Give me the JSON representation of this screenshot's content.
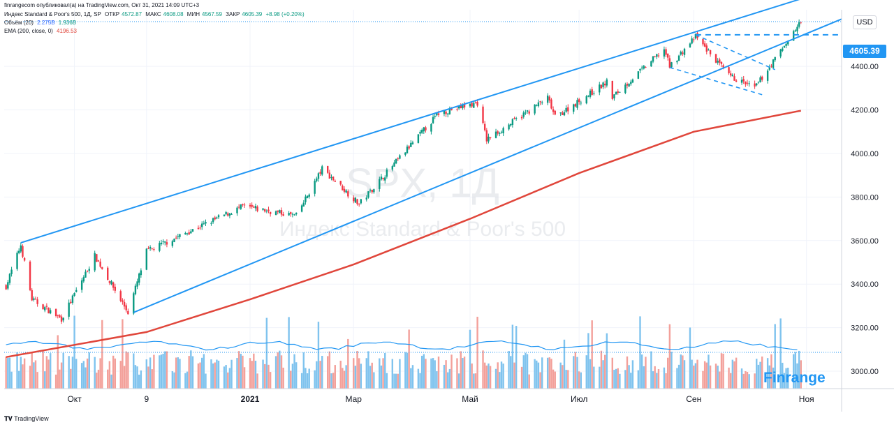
{
  "header": {
    "credit": "finrangecom опубликовал(а) на TradingView.com, Окт 31, 2021 14:09 UTC+3",
    "symbol_line": "Индекс Standard & Poor's 500, 1Д, SP",
    "ohlc": {
      "open_label": "ОТКР",
      "open": "4572.87",
      "high_label": "МАКС",
      "high": "4608.08",
      "low_label": "МИН",
      "low": "4567.59",
      "close_label": "ЗАКР",
      "close": "4605.39",
      "change": "+8.98 (+0.20%)"
    },
    "volume_line": {
      "label": "Объём (20)",
      "v1": "2.275B",
      "v2": "1.936B"
    },
    "ema_line": {
      "label": "EMA (200, close, 0)",
      "value": "4196.53"
    }
  },
  "watermark": {
    "ticker": "SPX, 1Д",
    "name": "Индекс Standard & Poor's 500"
  },
  "currency_button": "USD",
  "last_price": "4605.39",
  "brand": "Finrange",
  "footer": "TradingView",
  "colors": {
    "up": "#089981",
    "down": "#f23645",
    "channel": "#2196f3",
    "ema": "#e0463b",
    "vol_up": "#7fc3ee",
    "vol_down": "#f3a09a",
    "vol_ma": "#2196f3"
  },
  "chart_data": {
    "type": "candlestick",
    "title": "Индекс Standard & Poor's 500, 1Д",
    "y_axis": {
      "ticks": [
        3000,
        3200,
        3400,
        3600,
        3800,
        4000,
        4200,
        4400
      ],
      "ylim": [
        2920,
        4660
      ]
    },
    "x_axis": {
      "labels": [
        "Окт",
        "9",
        "2021",
        "Мар",
        "Май",
        "Июл",
        "Сен",
        "Ноя"
      ]
    },
    "price_path": [
      {
        "m": "2020-08-25",
        "v": 3390
      },
      {
        "m": "2020-09-02",
        "v": 3580
      },
      {
        "m": "2020-09-08",
        "v": 3330
      },
      {
        "m": "2020-09-24",
        "v": 3240
      },
      {
        "m": "2020-10-12",
        "v": 3530
      },
      {
        "m": "2020-10-30",
        "v": 3270
      },
      {
        "m": "2020-11-09",
        "v": 3550
      },
      {
        "m": "2020-12-31",
        "v": 3756
      },
      {
        "m": "2021-01-29",
        "v": 3714
      },
      {
        "m": "2021-02-12",
        "v": 3930
      },
      {
        "m": "2021-03-04",
        "v": 3768
      },
      {
        "m": "2021-04-16",
        "v": 4185
      },
      {
        "m": "2021-05-07",
        "v": 4232
      },
      {
        "m": "2021-05-12",
        "v": 4063
      },
      {
        "m": "2021-06-14",
        "v": 4255
      },
      {
        "m": "2021-06-18",
        "v": 4166
      },
      {
        "m": "2021-07-16",
        "v": 4327
      },
      {
        "m": "2021-07-19",
        "v": 4258
      },
      {
        "m": "2021-08-16",
        "v": 4480
      },
      {
        "m": "2021-08-19",
        "v": 4400
      },
      {
        "m": "2021-09-02",
        "v": 4537
      },
      {
        "m": "2021-09-20",
        "v": 4357
      },
      {
        "m": "2021-10-04",
        "v": 4300
      },
      {
        "m": "2021-10-29",
        "v": 4605
      }
    ],
    "ema200": [
      {
        "m": "2020-08-25",
        "v": 3065
      },
      {
        "m": "2020-11-09",
        "v": 3180
      },
      {
        "m": "2021-01-04",
        "v": 3330
      },
      {
        "m": "2021-03-01",
        "v": 3490
      },
      {
        "m": "2021-05-03",
        "v": 3700
      },
      {
        "m": "2021-07-01",
        "v": 3910
      },
      {
        "m": "2021-09-01",
        "v": 4100
      },
      {
        "m": "2021-10-29",
        "v": 4196.53
      }
    ],
    "channel": {
      "upper": [
        {
          "m": "2020-09-02",
          "v": 3590
        },
        {
          "m": "2021-10-29",
          "v": 4710
        }
      ],
      "lower": [
        {
          "m": "2020-11-02",
          "v": 3270
        },
        {
          "m": "2021-10-29",
          "v": 4540
        }
      ]
    },
    "flag_pattern": {
      "resistance": {
        "from": {
          "m": "2021-09-02",
          "v": 4545
        },
        "to": {
          "m": "2021-10-29",
          "v": 4545
        }
      },
      "upper": [
        {
          "m": "2021-09-02",
          "v": 4545
        },
        {
          "m": "2021-10-15",
          "v": 4385
        }
      ],
      "lower": [
        {
          "m": "2021-08-19",
          "v": 4395
        },
        {
          "m": "2021-10-08",
          "v": 4270
        }
      ]
    },
    "volume": {
      "unit": "B",
      "last": 2.275,
      "ma20": 1.936
    }
  }
}
